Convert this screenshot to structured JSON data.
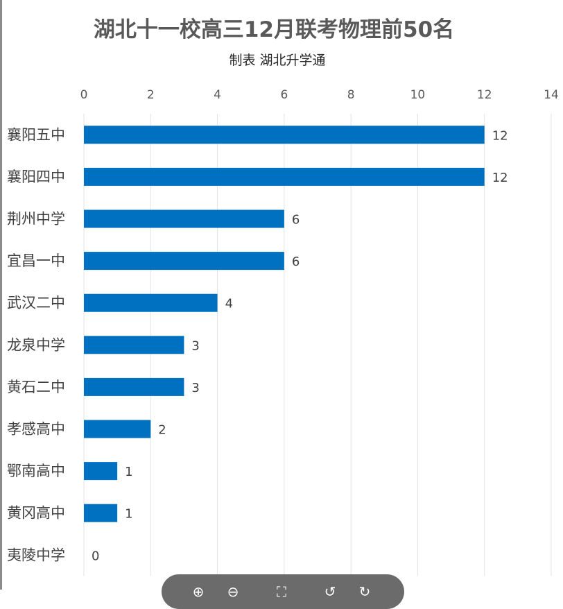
{
  "chart_data": {
    "type": "bar",
    "orientation": "horizontal",
    "title": "湖北十一校高三12月联考物理前50名",
    "subtitle": "制表 湖北升学通",
    "categories": [
      "襄阳五中",
      "襄阳四中",
      "荆州中学",
      "宜昌一中",
      "武汉二中",
      "龙泉中学",
      "黄石二中",
      "孝感高中",
      "鄂南高中",
      "黄冈高中",
      "夷陵中学"
    ],
    "values": [
      12,
      12,
      6,
      6,
      4,
      3,
      3,
      2,
      1,
      1,
      0
    ],
    "xlim": [
      0,
      14
    ],
    "xticks": [
      "0",
      "2",
      "4",
      "6",
      "8",
      "10",
      "12",
      "14"
    ],
    "x_axis_position": "top",
    "grid": true,
    "data_labels": true,
    "bar_color": "#0070c0",
    "legend": "none"
  },
  "toolbar": {
    "icons": [
      "zoom-in-icon",
      "zoom-out-icon",
      "fit-icon",
      "rotate-left-icon",
      "rotate-right-icon"
    ]
  }
}
